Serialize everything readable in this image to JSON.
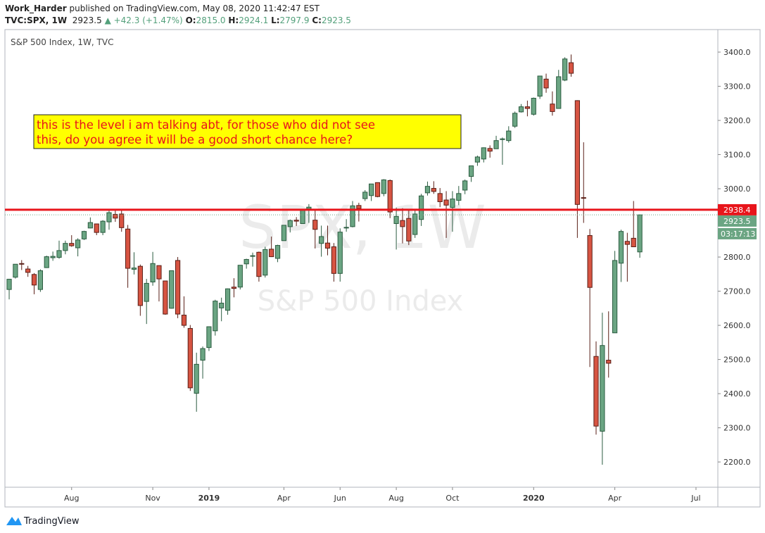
{
  "header": {
    "author": "Work_Harder",
    "published": "published on TradingView.com, May 08, 2020 11:42:47 EST",
    "symbol": "TVC:SPX, 1W",
    "last": "2923.5",
    "change": "▲ +42.3 (+1.47%)",
    "ohlc": [
      {
        "label": "O:",
        "value": "2815.0"
      },
      {
        "label": "H:",
        "value": "2924.1"
      },
      {
        "label": "L:",
        "value": "2797.9"
      },
      {
        "label": "C:",
        "value": "2923.5"
      }
    ]
  },
  "chart_data": {
    "type": "candlestick",
    "title": "S&P 500 Index, 1W, TVC",
    "watermark": [
      "SPX, 1W",
      "S&P 500 Index"
    ],
    "annotation": [
      "this is the level i am talking abt, for those who did not see",
      "this, do you agree it will be a good short chance here?"
    ],
    "up_color": "#6ba583",
    "down_color": "#d75442",
    "open": [
      2705,
      2741,
      2781,
      2765,
      2749,
      2705,
      2769,
      2798,
      2799,
      2819,
      2840,
      2827,
      2853,
      2885,
      2897,
      2872,
      2903,
      2925,
      2926,
      2882,
      2764,
      2773,
      2670,
      2727,
      2775,
      2730,
      2650,
      2790,
      2630,
      2591,
      2401,
      2498,
      2535,
      2584,
      2651,
      2644,
      2712,
      2712,
      2780,
      2804,
      2814,
      2747,
      2823,
      2796,
      2848,
      2889,
      2908,
      2898,
      2941,
      2908,
      2840,
      2841,
      2830,
      2752,
      2885,
      2889,
      2951,
      2971,
      2980,
      3018,
      2986,
      3024,
      2898,
      2907,
      2913,
      2866,
      2910,
      2988,
      3001,
      2986,
      2967,
      2945,
      2966,
      2996,
      3036,
      3078,
      3087,
      3118,
      3117,
      3144,
      3141,
      3183,
      3225,
      3240,
      3218,
      3271,
      3321,
      3248,
      3235,
      3318,
      3369,
      3258,
      2974,
      2863,
      2509,
      2290,
      2498,
      2578,
      2782,
      2846,
      2855,
      2815
    ],
    "high": [
      2736,
      2779,
      2791,
      2774,
      2753,
      2764,
      2804,
      2816,
      2848,
      2848,
      2864,
      2855,
      2877,
      2916,
      2898,
      2908,
      2941,
      2940,
      2939,
      2894,
      2814,
      2778,
      2736,
      2815,
      2775,
      2731,
      2760,
      2800,
      2685,
      2601,
      2520,
      2538,
      2597,
      2675,
      2681,
      2708,
      2738,
      2776,
      2795,
      2813,
      2816,
      2830,
      2860,
      2836,
      2893,
      2910,
      2917,
      2940,
      2955,
      2937,
      2892,
      2892,
      2841,
      2884,
      2911,
      2964,
      2959,
      2996,
      3014,
      3018,
      3028,
      3027,
      2945,
      2943,
      2939,
      2940,
      2985,
      3021,
      3022,
      3002,
      2993,
      2993,
      3008,
      3027,
      3066,
      3097,
      3121,
      3127,
      3155,
      3150,
      3183,
      3226,
      3248,
      3258,
      3267,
      3329,
      3337,
      3285,
      3348,
      3385,
      3393,
      3259,
      3136,
      2882,
      2553,
      2637,
      2641,
      2818,
      2880,
      2871,
      2964,
      2924.1
    ],
    "low": [
      2676,
      2737,
      2762,
      2742,
      2691,
      2698,
      2768,
      2789,
      2795,
      2808,
      2830,
      2802,
      2850,
      2884,
      2864,
      2864,
      2880,
      2903,
      2874,
      2710,
      2749,
      2628,
      2604,
      2716,
      2670,
      2631,
      2649,
      2621,
      2593,
      2408,
      2347,
      2444,
      2525,
      2570,
      2612,
      2631,
      2682,
      2705,
      2766,
      2772,
      2728,
      2740,
      2800,
      2785,
      2848,
      2872,
      2891,
      2898,
      2900,
      2825,
      2801,
      2805,
      2728,
      2728,
      2874,
      2887,
      2904,
      2964,
      2964,
      2975,
      2978,
      2914,
      2822,
      2840,
      2835,
      2856,
      2891,
      2980,
      2985,
      2946,
      2856,
      2874,
      2952,
      2984,
      3020,
      3067,
      3077,
      3091,
      3117,
      3070,
      3135,
      3178,
      3223,
      3212,
      3214,
      3263,
      3281,
      3214,
      3235,
      3315,
      3328,
      2856,
      2900,
      2478,
      2280,
      2192,
      2447,
      2578,
      2727,
      2728,
      2830,
      2797.9
    ],
    "close": [
      2735,
      2779,
      2780,
      2755,
      2718,
      2760,
      2801,
      2802,
      2819,
      2840,
      2833,
      2850,
      2875,
      2901,
      2872,
      2905,
      2930,
      2914,
      2886,
      2767,
      2768,
      2658,
      2723,
      2781,
      2736,
      2633,
      2760,
      2633,
      2600,
      2417,
      2486,
      2532,
      2596,
      2671,
      2665,
      2707,
      2708,
      2776,
      2793,
      2804,
      2743,
      2822,
      2801,
      2834,
      2893,
      2907,
      2905,
      2940,
      2946,
      2881,
      2860,
      2826,
      2752,
      2873,
      2887,
      2950,
      2942,
      2990,
      3014,
      2977,
      3026,
      2932,
      2919,
      2889,
      2847,
      2926,
      2979,
      3007,
      2992,
      2962,
      2952,
      2970,
      2986,
      3023,
      3067,
      3093,
      3120,
      3110,
      3141,
      3146,
      3169,
      3221,
      3240,
      3235,
      3265,
      3330,
      3295,
      3226,
      3328,
      3380,
      3338,
      2954,
      2972,
      2711,
      2305,
      2541,
      2489,
      2790,
      2875,
      2837,
      2830,
      2923.5
    ],
    "xlim": [
      -0.68,
      113.5
    ],
    "xticks": [
      {
        "value": 10,
        "label": "Aug"
      },
      {
        "value": 23,
        "label": "Nov"
      },
      {
        "value": 32,
        "label": "2019"
      },
      {
        "value": 44,
        "label": "Apr"
      },
      {
        "value": 53,
        "label": "Jun"
      },
      {
        "value": 62,
        "label": "Aug"
      },
      {
        "value": 71,
        "label": "Oct"
      },
      {
        "value": 84,
        "label": "2020"
      },
      {
        "value": 97,
        "label": "Apr"
      },
      {
        "value": 110,
        "label": "Jul"
      }
    ],
    "ylim": [
      2126,
      3466
    ],
    "yticks": [
      {
        "value": 2200,
        "label": "2200.0"
      },
      {
        "value": 2300,
        "label": "2300.0"
      },
      {
        "value": 2400,
        "label": "2400.0"
      },
      {
        "value": 2500,
        "label": "2500.0"
      },
      {
        "value": 2600,
        "label": "2600.0"
      },
      {
        "value": 2700,
        "label": "2700.0"
      },
      {
        "value": 2800,
        "label": "2800.0"
      },
      {
        "value": 2900,
        "label": "2900.0"
      },
      {
        "value": 3000,
        "label": "3000.0"
      },
      {
        "value": 3100,
        "label": "3100.0"
      },
      {
        "value": 3200,
        "label": "3200.0"
      },
      {
        "value": 3300,
        "label": "3300.0"
      },
      {
        "value": 3400,
        "label": "3400.0"
      }
    ],
    "grid": false,
    "hline": {
      "value": 2938.4,
      "color": "#e8151b"
    },
    "countdown": "03:17:13"
  },
  "footer": {
    "brand": "TradingView"
  }
}
